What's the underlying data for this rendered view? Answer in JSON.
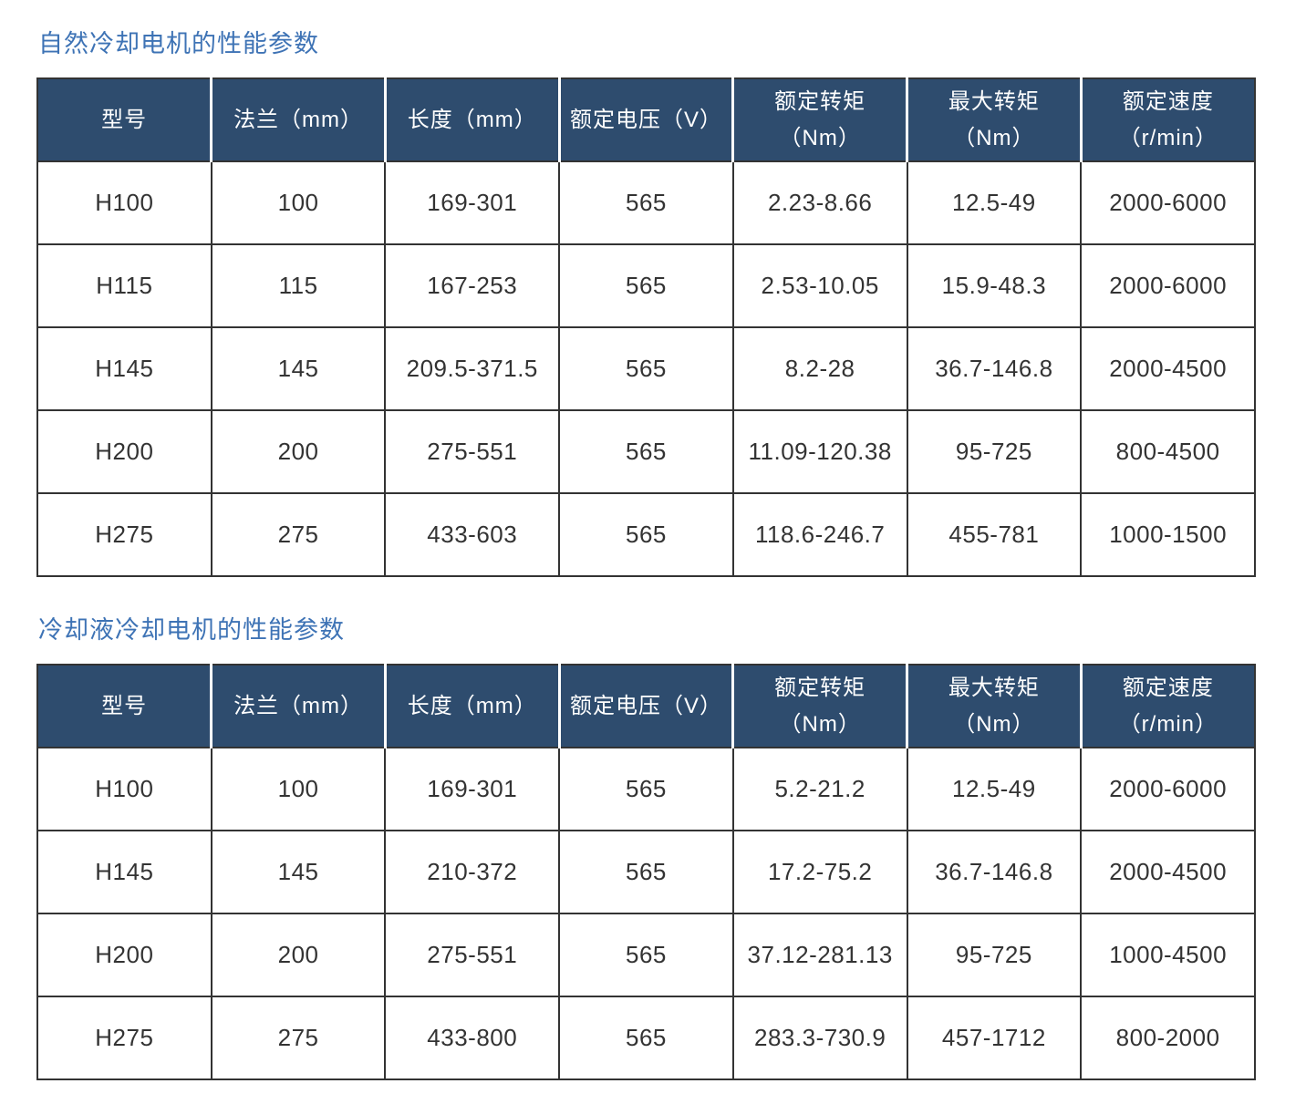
{
  "colors": {
    "title_text": "#3e73b5",
    "header_bg": "#2e4c6e",
    "header_text": "#ffffff",
    "grid_line": "#333333",
    "cell_text": "#333333"
  },
  "tables": [
    {
      "title": "自然冷却电机的性能参数",
      "columns": [
        {
          "lines": [
            "型号"
          ]
        },
        {
          "lines": [
            "法兰（mm）"
          ]
        },
        {
          "lines": [
            "长度（mm）"
          ]
        },
        {
          "lines": [
            "额定电压（V）"
          ]
        },
        {
          "lines": [
            "额定转矩",
            "（Nm）"
          ]
        },
        {
          "lines": [
            "最大转矩",
            "（Nm）"
          ]
        },
        {
          "lines": [
            "额定速度",
            "（r/min）"
          ]
        }
      ],
      "rows": [
        [
          "H100",
          "100",
          "169-301",
          "565",
          "2.23-8.66",
          "12.5-49",
          "2000-6000"
        ],
        [
          "H115",
          "115",
          "167-253",
          "565",
          "2.53-10.05",
          "15.9-48.3",
          "2000-6000"
        ],
        [
          "H145",
          "145",
          "209.5-371.5",
          "565",
          "8.2-28",
          "36.7-146.8",
          "2000-4500"
        ],
        [
          "H200",
          "200",
          "275-551",
          "565",
          "11.09-120.38",
          "95-725",
          "800-4500"
        ],
        [
          "H275",
          "275",
          "433-603",
          "565",
          "118.6-246.7",
          "455-781",
          "1000-1500"
        ]
      ]
    },
    {
      "title": "冷却液冷却电机的性能参数",
      "columns": [
        {
          "lines": [
            "型号"
          ]
        },
        {
          "lines": [
            "法兰（mm）"
          ]
        },
        {
          "lines": [
            "长度（mm）"
          ]
        },
        {
          "lines": [
            "额定电压（V）"
          ]
        },
        {
          "lines": [
            "额定转矩",
            "（Nm）"
          ]
        },
        {
          "lines": [
            "最大转矩",
            "（Nm）"
          ]
        },
        {
          "lines": [
            "额定速度",
            "（r/min）"
          ]
        }
      ],
      "rows": [
        [
          "H100",
          "100",
          "169-301",
          "565",
          "5.2-21.2",
          "12.5-49",
          "2000-6000"
        ],
        [
          "H145",
          "145",
          "210-372",
          "565",
          "17.2-75.2",
          "36.7-146.8",
          "2000-4500"
        ],
        [
          "H200",
          "200",
          "275-551",
          "565",
          "37.12-281.13",
          "95-725",
          "1000-4500"
        ],
        [
          "H275",
          "275",
          "433-800",
          "565",
          "283.3-730.9",
          "457-1712",
          "800-2000"
        ]
      ]
    }
  ]
}
